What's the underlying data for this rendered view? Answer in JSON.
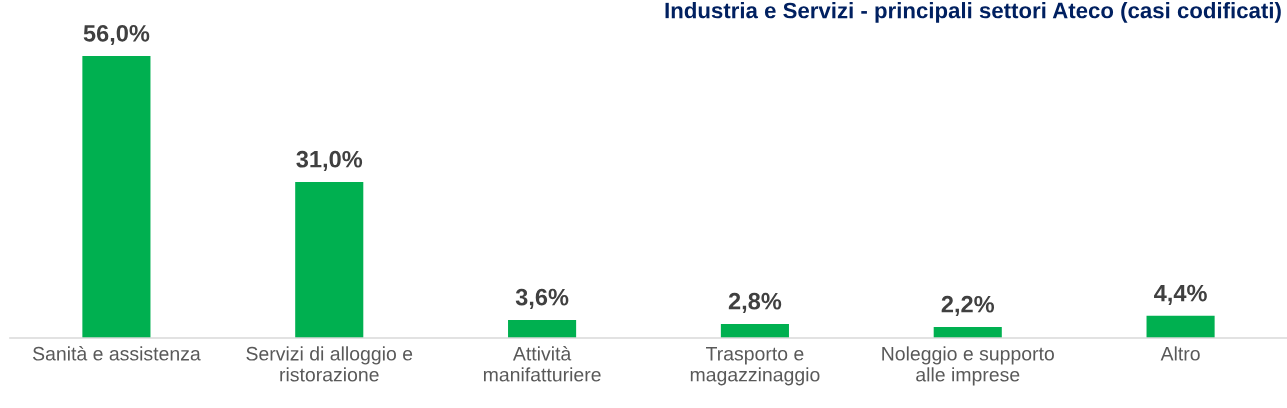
{
  "chart_data": {
    "type": "bar",
    "title": "Industria e Servizi - principali settori Ateco (casi codificati)",
    "categories": [
      "Sanità e assistenza",
      "Servizi di alloggio e ristorazione",
      "Attività manifatturiere",
      "Trasporto e magazzinaggio",
      "Noleggio e supporto alle imprese",
      "Altro"
    ],
    "values": [
      56.0,
      31.0,
      3.6,
      2.8,
      2.2,
      4.4
    ],
    "value_labels": [
      "56,0%",
      "31,0%",
      "3,6%",
      "2,8%",
      "2,2%",
      "4,4%"
    ],
    "color": "#00b050",
    "tick_labels": "x"
  }
}
